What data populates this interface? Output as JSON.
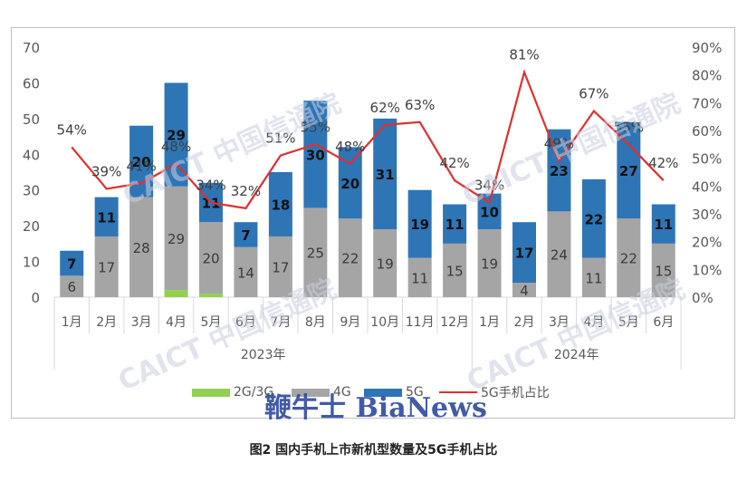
{
  "caption": "图2 国内手机上市新机型数量及5G手机占比",
  "watermark": {
    "org": "CAICT 中国信通院",
    "overlay": "鞭牛士 BiaNews"
  },
  "colors": {
    "g2_3": "#92d050",
    "g4": "#a5a5a5",
    "g5": "#2e75b6",
    "share_line": "#e03030",
    "axis": "#d9d9d9",
    "text": "#595959"
  },
  "chart_data": {
    "type": "bar",
    "stacked": true,
    "categories": [
      "1月",
      "2月",
      "3月",
      "4月",
      "5月",
      "6月",
      "7月",
      "8月",
      "9月",
      "10月",
      "11月",
      "12月",
      "1月",
      "2月",
      "3月",
      "4月",
      "5月",
      "6月"
    ],
    "groups": [
      {
        "label": "2023年",
        "count": 12
      },
      {
        "label": "2024年",
        "count": 6
      }
    ],
    "series": [
      {
        "name": "2G/3G",
        "values": [
          0,
          0,
          0,
          2,
          1,
          0,
          0,
          0,
          0,
          0,
          0,
          0,
          0,
          0,
          0,
          0,
          0,
          0
        ]
      },
      {
        "name": "4G",
        "values": [
          6,
          17,
          28,
          29,
          20,
          14,
          17,
          25,
          22,
          19,
          11,
          15,
          19,
          4,
          24,
          11,
          22,
          15
        ]
      },
      {
        "name": "5G",
        "values": [
          7,
          11,
          20,
          29,
          11,
          7,
          18,
          30,
          20,
          31,
          19,
          11,
          10,
          17,
          23,
          22,
          27,
          11
        ]
      }
    ],
    "line_series": {
      "name": "5G手机占比",
      "values": [
        54,
        39,
        41,
        48,
        34,
        32,
        51,
        55,
        48,
        62,
        63,
        42,
        34,
        81,
        49,
        67,
        55,
        42
      ],
      "labels": [
        "54%",
        "39%",
        "41%",
        "48%",
        "34%",
        "32%",
        "51%",
        "55%",
        "48%",
        "62%",
        "63%",
        "42%",
        "34%",
        "81%",
        "49%",
        "67%",
        "55%",
        "42%"
      ]
    },
    "y_left": {
      "min": 0,
      "max": 70,
      "ticks": [
        "0",
        "10",
        "20",
        "30",
        "40",
        "50",
        "60",
        "70"
      ]
    },
    "y_right": {
      "min": 0,
      "max": 90,
      "ticks": [
        "0%",
        "10%",
        "20%",
        "30%",
        "40%",
        "50%",
        "60%",
        "70%",
        "80%",
        "90%"
      ]
    },
    "legend": {
      "position": "bottom",
      "items": [
        "2G/3G",
        "4G",
        "5G",
        "5G手机占比"
      ]
    },
    "grid": false
  }
}
